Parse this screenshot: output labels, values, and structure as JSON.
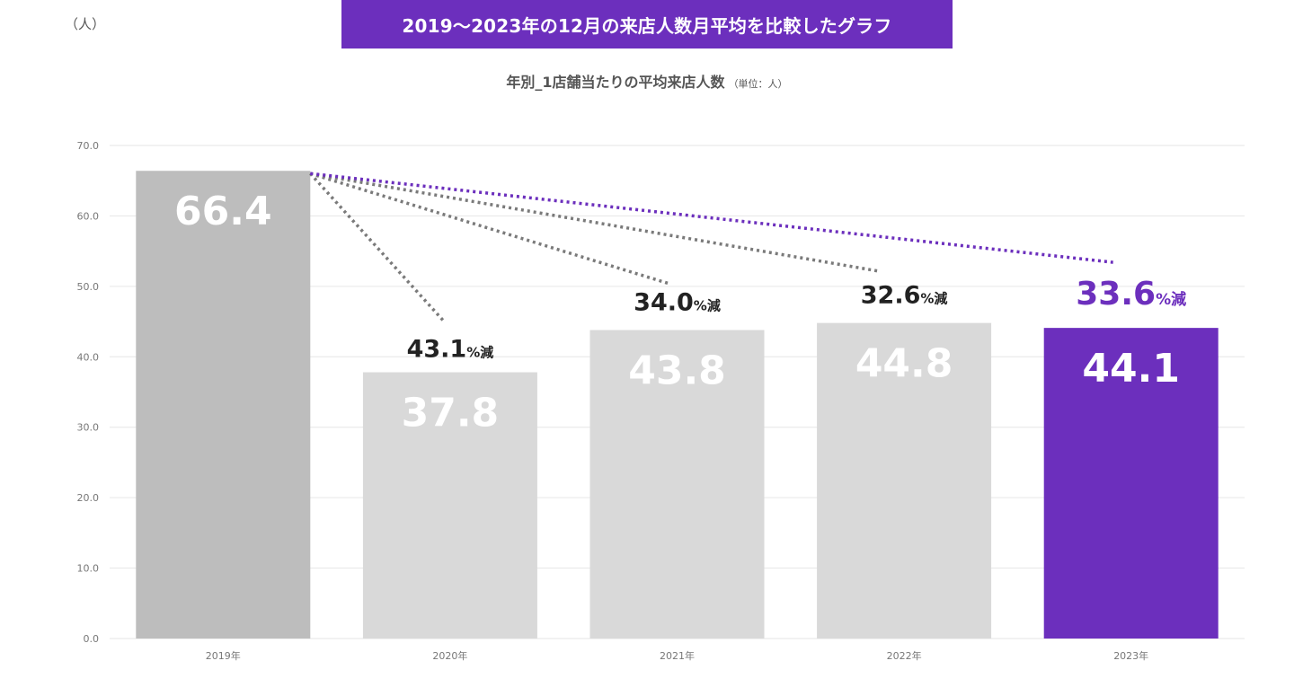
{
  "unit_label": "（人）",
  "banner_title": "2019～2023年の12月の来店人数月平均を比較したグラフ",
  "chart_data": {
    "type": "bar",
    "title": "年別_1店舗当たりの平均来店人数",
    "unit_note": "（単位：人）",
    "categories": [
      "2019年",
      "2020年",
      "2021年",
      "2022年",
      "2023年"
    ],
    "values": [
      66.4,
      37.8,
      43.8,
      44.8,
      44.1
    ],
    "value_labels": [
      "66.4",
      "37.8",
      "43.8",
      "44.8",
      "44.1"
    ],
    "ylim": [
      0,
      70
    ],
    "yticks": [
      "0.0",
      "10.0",
      "20.0",
      "30.0",
      "40.0",
      "50.0",
      "60.0",
      "70.0"
    ],
    "grid": true,
    "annotations": [
      {
        "target": "2020年",
        "value": "43.1",
        "suffix": "%減",
        "highlight": false
      },
      {
        "target": "2021年",
        "value": "34.0",
        "suffix": "%減",
        "highlight": false
      },
      {
        "target": "2022年",
        "value": "32.6",
        "suffix": "%減",
        "highlight": false
      },
      {
        "target": "2023年",
        "value": "33.6",
        "suffix": "%減",
        "highlight": true
      }
    ],
    "colors": {
      "base_bar": "#bdbdbd",
      "bar": "#d9d9d9",
      "highlight_bar": "#6c2fbd",
      "dotted_line": "#7a7a7a",
      "highlight_line": "#6c2fbd",
      "annotation_text": "#222222",
      "highlight_text": "#6c2fbd",
      "bar_label": "#ffffff"
    }
  }
}
